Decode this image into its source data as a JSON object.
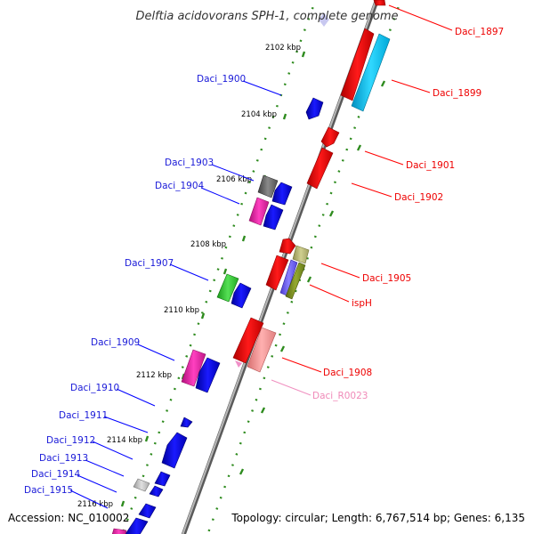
{
  "title": "Delftia acidovorans SPH-1, complete genome",
  "footer": {
    "accession": "Accession: NC_010002",
    "topology": "Topology: circular; Length: 6,767,514 bp; Genes: 6,135"
  },
  "colors": {
    "backbone": "#8a8a8a",
    "tick": "#2e8b1e",
    "red": "#ff0000",
    "cyan": "#00c8f0",
    "blue": "#0000ff",
    "magenta": "#ee22aa",
    "grey": "#707070",
    "light_grey": "#c0c0c0",
    "green": "#33cc33",
    "olive": "#a0a060",
    "violet": "#7060ff",
    "pink": "#f09090",
    "pink_label": "#f08ab8"
  },
  "scale_labels": [
    "2102 kbp",
    "2104 kbp",
    "2106 kbp",
    "2108 kbp",
    "2110 kbp",
    "2112 kbp",
    "2114 kbp",
    "2116 kbp"
  ],
  "gene_labels": {
    "left": [
      "Daci_1900",
      "Daci_1903",
      "Daci_1904",
      "Daci_1907",
      "Daci_1909",
      "Daci_1910",
      "Daci_1911",
      "Daci_1912",
      "Daci_1913",
      "Daci_1914",
      "Daci_1915"
    ],
    "right": [
      "Daci_1897",
      "Daci_1899",
      "Daci_1901",
      "Daci_1902",
      "Daci_1905",
      "ispH",
      "Daci_1908",
      "Daci_R0023"
    ]
  }
}
